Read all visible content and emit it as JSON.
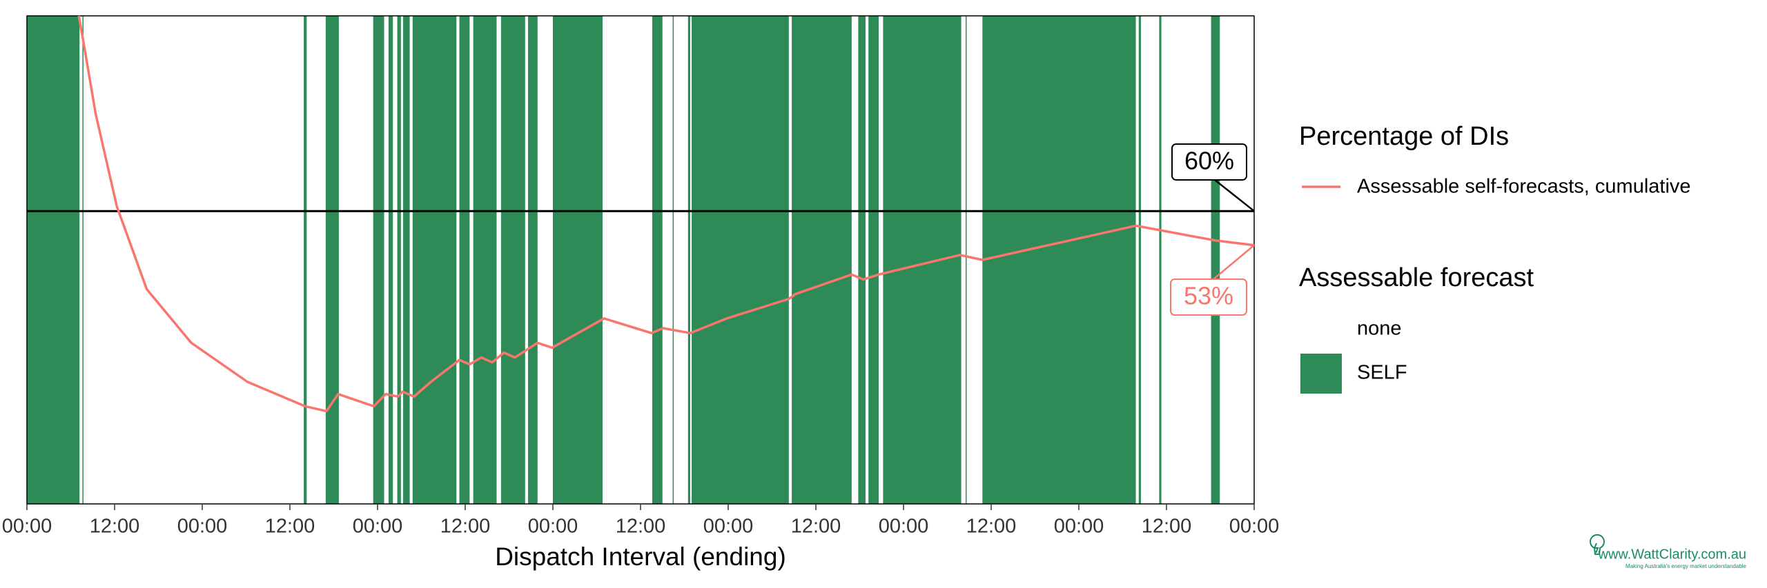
{
  "chart_data": {
    "type": "line",
    "x_label": "Dispatch Interval (ending)",
    "xlim": [
      0,
      168
    ],
    "xticks": [
      {
        "value": 0,
        "label": "00:00"
      },
      {
        "value": 12,
        "label": "12:00"
      },
      {
        "value": 24,
        "label": "00:00"
      },
      {
        "value": 36,
        "label": "12:00"
      },
      {
        "value": 48,
        "label": "00:00"
      },
      {
        "value": 60,
        "label": "12:00"
      },
      {
        "value": 72,
        "label": "00:00"
      },
      {
        "value": 84,
        "label": "12:00"
      },
      {
        "value": 96,
        "label": "00:00"
      },
      {
        "value": 108,
        "label": "12:00"
      },
      {
        "value": 120,
        "label": "00:00"
      },
      {
        "value": 132,
        "label": "12:00"
      },
      {
        "value": 144,
        "label": "00:00"
      },
      {
        "value": 156,
        "label": "12:00"
      },
      {
        "value": 168,
        "label": "00:00"
      }
    ],
    "ylim": [
      0,
      100
    ],
    "legend_title": "Percentage of DIs",
    "series": [
      {
        "name": "Assessable self-forecasts, cumulative",
        "color": "#F8766D",
        "x": [
          7.1,
          7.7,
          9.4,
          12.3,
          16.4,
          22.5,
          30.2,
          38.1,
          41.0,
          42.6,
          47.5,
          49.1,
          50.8,
          51.4,
          53.0,
          55.3,
          59.2,
          60.6,
          62.2,
          63.7,
          65.3,
          66.8,
          69.9,
          71.9,
          79.0,
          85.5,
          87.1,
          90.8,
          95.8,
          104.3,
          105.2,
          112.9,
          114.5,
          116.6,
          127.7,
          130.8,
          151.8,
          162.6,
          168
        ],
        "values": [
          100,
          95,
          80,
          61,
          44,
          33,
          25,
          20,
          19,
          22.5,
          20,
          22.5,
          22,
          23,
          22,
          25,
          29.5,
          28.6,
          30,
          29,
          31,
          30,
          33,
          32,
          38,
          35,
          36,
          35,
          38,
          42,
          43,
          47,
          46,
          47,
          51,
          50,
          57,
          54,
          53
        ]
      }
    ],
    "reference_line": {
      "value": 60,
      "label": "60%",
      "color": "#000000"
    },
    "end_label": {
      "value": 53,
      "label": "53%"
    },
    "shading": {
      "title": "Assessable forecast",
      "levels": [
        {
          "name": "none",
          "color": "#ffffff"
        },
        {
          "name": "SELF",
          "color": "#2E8B57",
          "intervals": [
            [
              0,
              7.2
            ],
            [
              7.6,
              7.7
            ],
            [
              37.9,
              38.3
            ],
            [
              40.9,
              42.7
            ],
            [
              47.4,
              48.9
            ],
            [
              49.5,
              50.1
            ],
            [
              50.7,
              51.2
            ],
            [
              51.5,
              52.4
            ],
            [
              52.8,
              58.8
            ],
            [
              59.2,
              60.6
            ],
            [
              61.1,
              64.3
            ],
            [
              64.9,
              68.2
            ],
            [
              68.6,
              69.9
            ],
            [
              72.0,
              78.8
            ],
            [
              85.6,
              87.0
            ],
            [
              88.4,
              88.5
            ],
            [
              90.5,
              90.8
            ],
            [
              91.0,
              104.3
            ],
            [
              104.7,
              112.9
            ],
            [
              113.8,
              114.8
            ],
            [
              115.2,
              116.6
            ],
            [
              117.2,
              127.9
            ],
            [
              128.5,
              128.6
            ],
            [
              130.8,
              151.8
            ],
            [
              152.2,
              152.5
            ],
            [
              155.0,
              155.3
            ],
            [
              162.1,
              163.3
            ]
          ]
        }
      ]
    },
    "watermark": "www.WattClarity.com.au",
    "tagline": "Making Australia's energy market understandable"
  }
}
